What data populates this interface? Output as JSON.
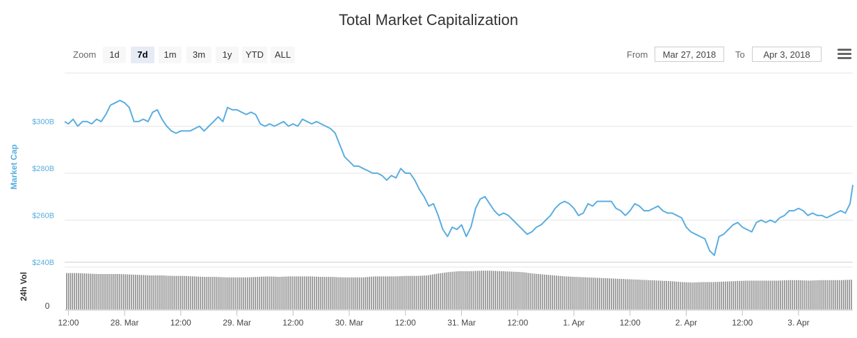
{
  "title": "Total Market Capitalization",
  "zoom": {
    "label": "Zoom",
    "buttons": [
      "1d",
      "7d",
      "1m",
      "3m",
      "1y",
      "YTD",
      "ALL"
    ],
    "selected": "7d"
  },
  "range": {
    "from_label": "From",
    "from_value": "Mar 27, 2018",
    "to_label": "To",
    "to_value": "Apr 3, 2018"
  },
  "menu_icon": "hamburger-menu-icon",
  "colors": {
    "line": "#5aade0",
    "volume": "#8a8a8a",
    "grid": "#e6e6e6"
  },
  "chart_data": [
    {
      "type": "line",
      "ylabel": "Market Cap",
      "y_ticks": [
        240,
        260,
        280,
        300
      ],
      "y_tick_labels": [
        "$240B",
        "$260B",
        "$280B",
        "$300B"
      ],
      "ylim": [
        240,
        320
      ],
      "grid": true,
      "x_ticks": [
        "12:00",
        "28. Mar",
        "12:00",
        "29. Mar",
        "12:00",
        "30. Mar",
        "12:00",
        "31. Mar",
        "12:00",
        "1. Apr",
        "12:00",
        "2. Apr",
        "12:00",
        "3. Apr"
      ],
      "x_tick_hours": [
        12,
        24,
        36,
        48,
        60,
        72,
        84,
        96,
        108,
        120,
        132,
        144,
        156,
        168
      ],
      "x_range_hours": [
        11.2,
        179.6
      ],
      "series": [
        {
          "points": [
            [
              11.2,
              302
            ],
            [
              12,
              301
            ],
            [
              13,
              303
            ],
            [
              14,
              300
            ],
            [
              15,
              302
            ],
            [
              16,
              302
            ],
            [
              17,
              301
            ],
            [
              18,
              303
            ],
            [
              19,
              302
            ],
            [
              20,
              305
            ],
            [
              21,
              309
            ],
            [
              22,
              310
            ],
            [
              23,
              311
            ],
            [
              24,
              310
            ],
            [
              25,
              308
            ],
            [
              26,
              302
            ],
            [
              27,
              302
            ],
            [
              28,
              303
            ],
            [
              29,
              302
            ],
            [
              30,
              306
            ],
            [
              31,
              307
            ],
            [
              32,
              303
            ],
            [
              33,
              300
            ],
            [
              34,
              298
            ],
            [
              35,
              297
            ],
            [
              36,
              298
            ],
            [
              37,
              298
            ],
            [
              38,
              298
            ],
            [
              39,
              299
            ],
            [
              40,
              300
            ],
            [
              41,
              298
            ],
            [
              42,
              300
            ],
            [
              43,
              302
            ],
            [
              44,
              304
            ],
            [
              45,
              302
            ],
            [
              46,
              308
            ],
            [
              47,
              307
            ],
            [
              48,
              307
            ],
            [
              49,
              306
            ],
            [
              50,
              305
            ],
            [
              51,
              306
            ],
            [
              52,
              305
            ],
            [
              53,
              301
            ],
            [
              54,
              300
            ],
            [
              55,
              301
            ],
            [
              56,
              300
            ],
            [
              57,
              301
            ],
            [
              58,
              302
            ],
            [
              59,
              300
            ],
            [
              60,
              301
            ],
            [
              61,
              300
            ],
            [
              62,
              303
            ],
            [
              63,
              302
            ],
            [
              64,
              301
            ],
            [
              65,
              302
            ],
            [
              66,
              301
            ],
            [
              67,
              300
            ],
            [
              68,
              299
            ],
            [
              69,
              297
            ],
            [
              70,
              292
            ],
            [
              71,
              287
            ],
            [
              72,
              285
            ],
            [
              73,
              283
            ],
            [
              74,
              283
            ],
            [
              75,
              282
            ],
            [
              76,
              281
            ],
            [
              77,
              280
            ],
            [
              78,
              280
            ],
            [
              79,
              279
            ],
            [
              80,
              277
            ],
            [
              81,
              279
            ],
            [
              82,
              278
            ],
            [
              83,
              282
            ],
            [
              84,
              280
            ],
            [
              85,
              280
            ],
            [
              86,
              277
            ],
            [
              87,
              273
            ],
            [
              88,
              270
            ],
            [
              89,
              266
            ],
            [
              90,
              267
            ],
            [
              91,
              262
            ],
            [
              92,
              256
            ],
            [
              93,
              253
            ],
            [
              94,
              257
            ],
            [
              95,
              256
            ],
            [
              96,
              258
            ],
            [
              97,
              253
            ],
            [
              98,
              257
            ],
            [
              99,
              265
            ],
            [
              100,
              269
            ],
            [
              101,
              270
            ],
            [
              102,
              267
            ],
            [
              103,
              264
            ],
            [
              104,
              262
            ],
            [
              105,
              263
            ],
            [
              106,
              262
            ],
            [
              107,
              260
            ],
            [
              108,
              258
            ],
            [
              109,
              256
            ],
            [
              110,
              254
            ],
            [
              111,
              255
            ],
            [
              112,
              257
            ],
            [
              113,
              258
            ],
            [
              114,
              260
            ],
            [
              115,
              262
            ],
            [
              116,
              265
            ],
            [
              117,
              267
            ],
            [
              118,
              268
            ],
            [
              119,
              267
            ],
            [
              120,
              265
            ],
            [
              121,
              262
            ],
            [
              122,
              263
            ],
            [
              123,
              267
            ],
            [
              124,
              266
            ],
            [
              125,
              268
            ],
            [
              126,
              268
            ],
            [
              127,
              268
            ],
            [
              128,
              268
            ],
            [
              129,
              265
            ],
            [
              130,
              264
            ],
            [
              131,
              262
            ],
            [
              132,
              264
            ],
            [
              133,
              267
            ],
            [
              134,
              266
            ],
            [
              135,
              264
            ],
            [
              136,
              264
            ],
            [
              137,
              265
            ],
            [
              138,
              266
            ],
            [
              139,
              264
            ],
            [
              140,
              263
            ],
            [
              141,
              263
            ],
            [
              142,
              262
            ],
            [
              143,
              261
            ],
            [
              144,
              257
            ],
            [
              145,
              255
            ],
            [
              146,
              254
            ],
            [
              147,
              253
            ],
            [
              148,
              252
            ],
            [
              149,
              247
            ],
            [
              150,
              245
            ],
            [
              151,
              253
            ],
            [
              152,
              254
            ],
            [
              153,
              256
            ],
            [
              154,
              258
            ],
            [
              155,
              259
            ],
            [
              156,
              257
            ],
            [
              157,
              256
            ],
            [
              158,
              255
            ],
            [
              159,
              259
            ],
            [
              160,
              260
            ],
            [
              161,
              259
            ],
            [
              162,
              260
            ],
            [
              163,
              259
            ],
            [
              164,
              261
            ],
            [
              165,
              262
            ],
            [
              166,
              264
            ],
            [
              167,
              264
            ],
            [
              168,
              265
            ],
            [
              169,
              264
            ],
            [
              170,
              262
            ],
            [
              171,
              263
            ],
            [
              172,
              262
            ],
            [
              173,
              262
            ],
            [
              174,
              261
            ],
            [
              175,
              262
            ],
            [
              176,
              263
            ],
            [
              177,
              264
            ],
            [
              178,
              263
            ],
            [
              179,
              267
            ],
            [
              179.6,
              275
            ]
          ]
        }
      ]
    },
    {
      "type": "bar",
      "ylabel": "24h Vol",
      "y_tick_labels": [
        "0"
      ],
      "x_range_hours": [
        11.2,
        179.6
      ],
      "relative_levels": [
        0.77,
        0.77,
        0.76,
        0.75,
        0.75,
        0.75,
        0.74,
        0.73,
        0.72,
        0.72,
        0.71,
        0.71,
        0.7,
        0.69,
        0.69,
        0.68,
        0.68,
        0.68,
        0.69,
        0.7,
        0.69,
        0.7,
        0.7,
        0.7,
        0.69,
        0.69,
        0.68,
        0.68,
        0.68,
        0.7,
        0.7,
        0.7,
        0.71,
        0.71,
        0.72,
        0.76,
        0.79,
        0.81,
        0.81,
        0.82,
        0.82,
        0.81,
        0.8,
        0.79,
        0.76,
        0.74,
        0.72,
        0.7,
        0.69,
        0.68,
        0.67,
        0.66,
        0.65,
        0.64,
        0.63,
        0.62,
        0.61,
        0.6,
        0.58,
        0.57,
        0.58,
        0.58,
        0.59,
        0.6,
        0.61,
        0.61,
        0.61,
        0.61,
        0.62,
        0.62,
        0.61,
        0.62,
        0.62,
        0.62,
        0.63
      ]
    }
  ]
}
